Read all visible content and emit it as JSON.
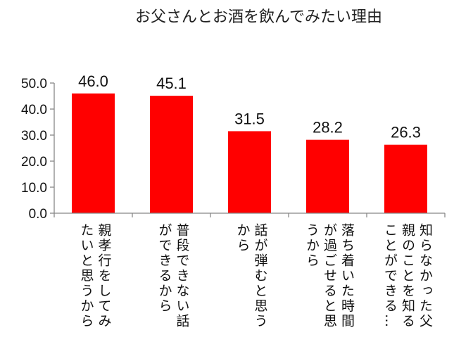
{
  "chart_data": {
    "type": "bar",
    "title": "お父さんとお酒を飲んでみたい理由",
    "categories": [
      "親孝行をしてみたいと思うから",
      "普段できない話ができるから",
      "話が弾むと思うから",
      "落ち着いた時間が過ごせると思うから",
      "知らなかった父親のことを知ることができる…"
    ],
    "values": [
      46.0,
      45.1,
      31.5,
      28.2,
      26.3
    ],
    "ylim": [
      0,
      50
    ],
    "yticks": [
      "0.0",
      "10.0",
      "20.0",
      "30.0",
      "40.0",
      "50.0"
    ],
    "xlabel": "",
    "ylabel": "",
    "grid": false,
    "bar_color": "#ff0000",
    "data_labels": true
  }
}
